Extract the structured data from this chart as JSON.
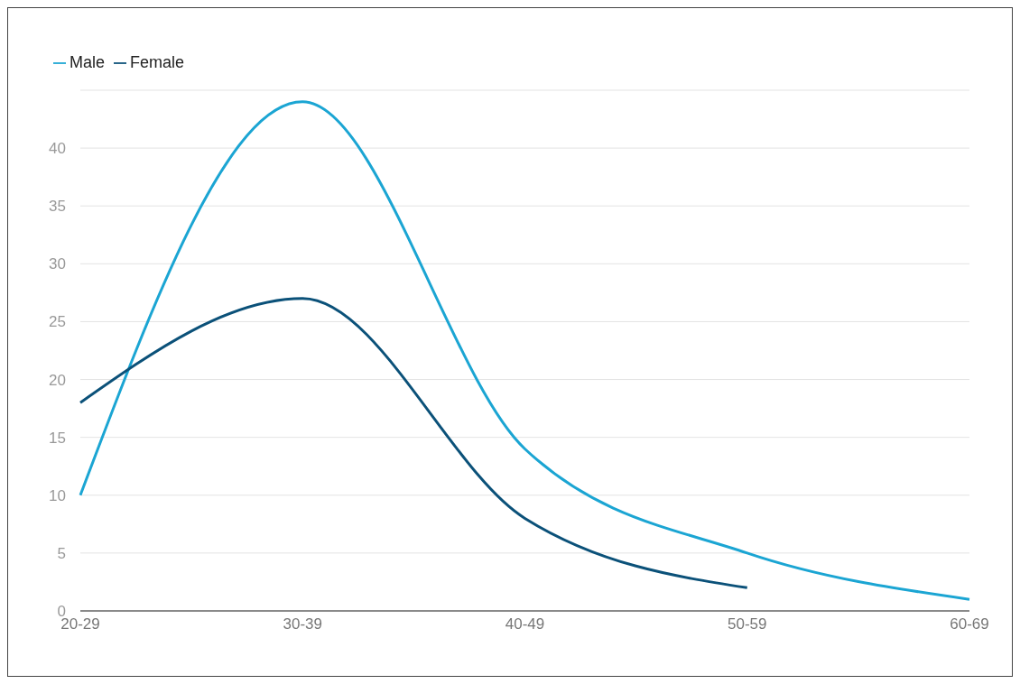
{
  "chart_data": {
    "type": "line",
    "categories": [
      "20-29",
      "30-39",
      "40-49",
      "50-59",
      "60-69"
    ],
    "series": [
      {
        "name": "Male",
        "color": "#1ba5d3",
        "values": [
          10,
          44,
          14,
          5,
          1
        ]
      },
      {
        "name": "Female",
        "color": "#0b5179",
        "values": [
          18,
          27,
          8,
          2,
          null
        ]
      }
    ],
    "ylim": [
      0,
      45
    ],
    "yticks": [
      0,
      5,
      10,
      15,
      20,
      25,
      30,
      35,
      40
    ],
    "grid": "y",
    "legend": "top left",
    "marker": "none",
    "line_style": "solid"
  }
}
